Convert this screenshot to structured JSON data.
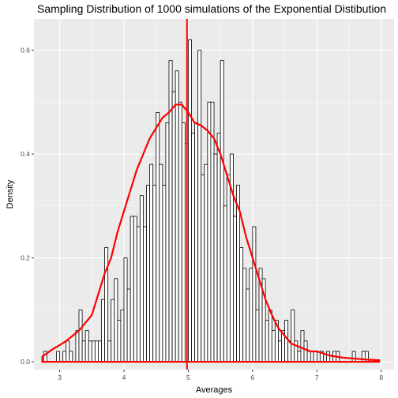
{
  "chart_data": {
    "type": "bar",
    "title": "Sampling Distribution of 1000 simulations of the Exponential Distibution",
    "xlabel": "Averages",
    "ylabel": "Density",
    "xlim": [
      2.6,
      8.2
    ],
    "ylim": [
      -0.015,
      0.66
    ],
    "x_ticks": [
      "3",
      "4",
      "5",
      "6",
      "7",
      "8"
    ],
    "x_tick_values": [
      3,
      4,
      5,
      6,
      7,
      8
    ],
    "y_ticks": [
      "0.0",
      "0.2",
      "0.4",
      "0.6"
    ],
    "y_tick_values": [
      0.0,
      0.2,
      0.4,
      0.6
    ],
    "grid": true,
    "histogram": {
      "bin_width": 0.05,
      "bins_left": [
        2.75,
        2.8,
        2.85,
        2.9,
        2.95,
        3.0,
        3.05,
        3.1,
        3.15,
        3.2,
        3.25,
        3.3,
        3.35,
        3.4,
        3.45,
        3.5,
        3.55,
        3.6,
        3.65,
        3.7,
        3.75,
        3.8,
        3.85,
        3.9,
        3.95,
        4.0,
        4.05,
        4.1,
        4.15,
        4.2,
        4.25,
        4.3,
        4.35,
        4.4,
        4.45,
        4.5,
        4.55,
        4.6,
        4.65,
        4.7,
        4.75,
        4.8,
        4.85,
        4.9,
        4.95,
        5.0,
        5.05,
        5.1,
        5.15,
        5.2,
        5.25,
        5.3,
        5.35,
        5.4,
        5.45,
        5.5,
        5.55,
        5.6,
        5.65,
        5.7,
        5.75,
        5.8,
        5.85,
        5.9,
        5.95,
        6.0,
        6.05,
        6.1,
        6.15,
        6.2,
        6.25,
        6.3,
        6.35,
        6.4,
        6.45,
        6.5,
        6.55,
        6.6,
        6.65,
        6.7,
        6.75,
        6.8,
        6.85,
        6.9,
        6.95,
        7.0,
        7.05,
        7.1,
        7.15,
        7.2,
        7.25,
        7.3,
        7.35,
        7.4,
        7.45,
        7.5,
        7.55,
        7.6,
        7.65,
        7.7,
        7.75,
        7.8,
        7.85,
        7.9
      ],
      "density": [
        0.02,
        0.0,
        0.0,
        0.0,
        0.02,
        0.0,
        0.02,
        0.04,
        0.02,
        0.0,
        0.06,
        0.1,
        0.04,
        0.06,
        0.04,
        0.04,
        0.04,
        0.04,
        0.12,
        0.22,
        0.04,
        0.12,
        0.16,
        0.08,
        0.1,
        0.2,
        0.14,
        0.28,
        0.28,
        0.26,
        0.32,
        0.26,
        0.34,
        0.38,
        0.34,
        0.48,
        0.38,
        0.34,
        0.46,
        0.58,
        0.52,
        0.56,
        0.5,
        0.46,
        0.42,
        0.62,
        0.44,
        0.46,
        0.6,
        0.36,
        0.38,
        0.5,
        0.5,
        0.4,
        0.44,
        0.58,
        0.3,
        0.36,
        0.4,
        0.28,
        0.34,
        0.22,
        0.18,
        0.14,
        0.18,
        0.26,
        0.1,
        0.18,
        0.16,
        0.08,
        0.1,
        0.06,
        0.08,
        0.04,
        0.06,
        0.08,
        0.04,
        0.1,
        0.04,
        0.02,
        0.06,
        0.04,
        0.02,
        0.0,
        0.02,
        0.0,
        0.02,
        0.0,
        0.02,
        0.0,
        0.02,
        0.02,
        0.0,
        0.0,
        0.0,
        0.0,
        0.02,
        0.0,
        0.0,
        0.02,
        0.02,
        0.0,
        0.0,
        0.0,
        0.02,
        0.02
      ]
    },
    "density_curve": {
      "x": [
        2.73,
        2.9,
        3.0,
        3.1,
        3.2,
        3.3,
        3.4,
        3.5,
        3.6,
        3.7,
        3.8,
        3.9,
        4.0,
        4.1,
        4.2,
        4.3,
        4.4,
        4.5,
        4.6,
        4.7,
        4.8,
        4.9,
        5.0,
        5.1,
        5.2,
        5.3,
        5.4,
        5.5,
        5.6,
        5.7,
        5.8,
        5.9,
        6.0,
        6.1,
        6.2,
        6.3,
        6.4,
        6.5,
        6.6,
        6.7,
        6.8,
        6.9,
        7.0,
        7.2,
        7.4,
        7.6,
        7.8,
        7.97
      ],
      "y": [
        0.01,
        0.025,
        0.032,
        0.04,
        0.05,
        0.06,
        0.075,
        0.09,
        0.13,
        0.17,
        0.2,
        0.25,
        0.29,
        0.33,
        0.37,
        0.4,
        0.43,
        0.45,
        0.47,
        0.48,
        0.495,
        0.495,
        0.48,
        0.46,
        0.455,
        0.445,
        0.43,
        0.4,
        0.36,
        0.32,
        0.29,
        0.24,
        0.2,
        0.16,
        0.12,
        0.09,
        0.065,
        0.05,
        0.035,
        0.03,
        0.025,
        0.02,
        0.02,
        0.012,
        0.008,
        0.006,
        0.004,
        0.003
      ],
      "color": "#ff0000"
    },
    "mean_line": {
      "x": 4.98,
      "color": "#ff0000"
    },
    "colors": {
      "panel": "#ebebeb",
      "grid": "#ffffff",
      "bar_fill": "#ffffff",
      "bar_stroke": "#000000"
    }
  }
}
